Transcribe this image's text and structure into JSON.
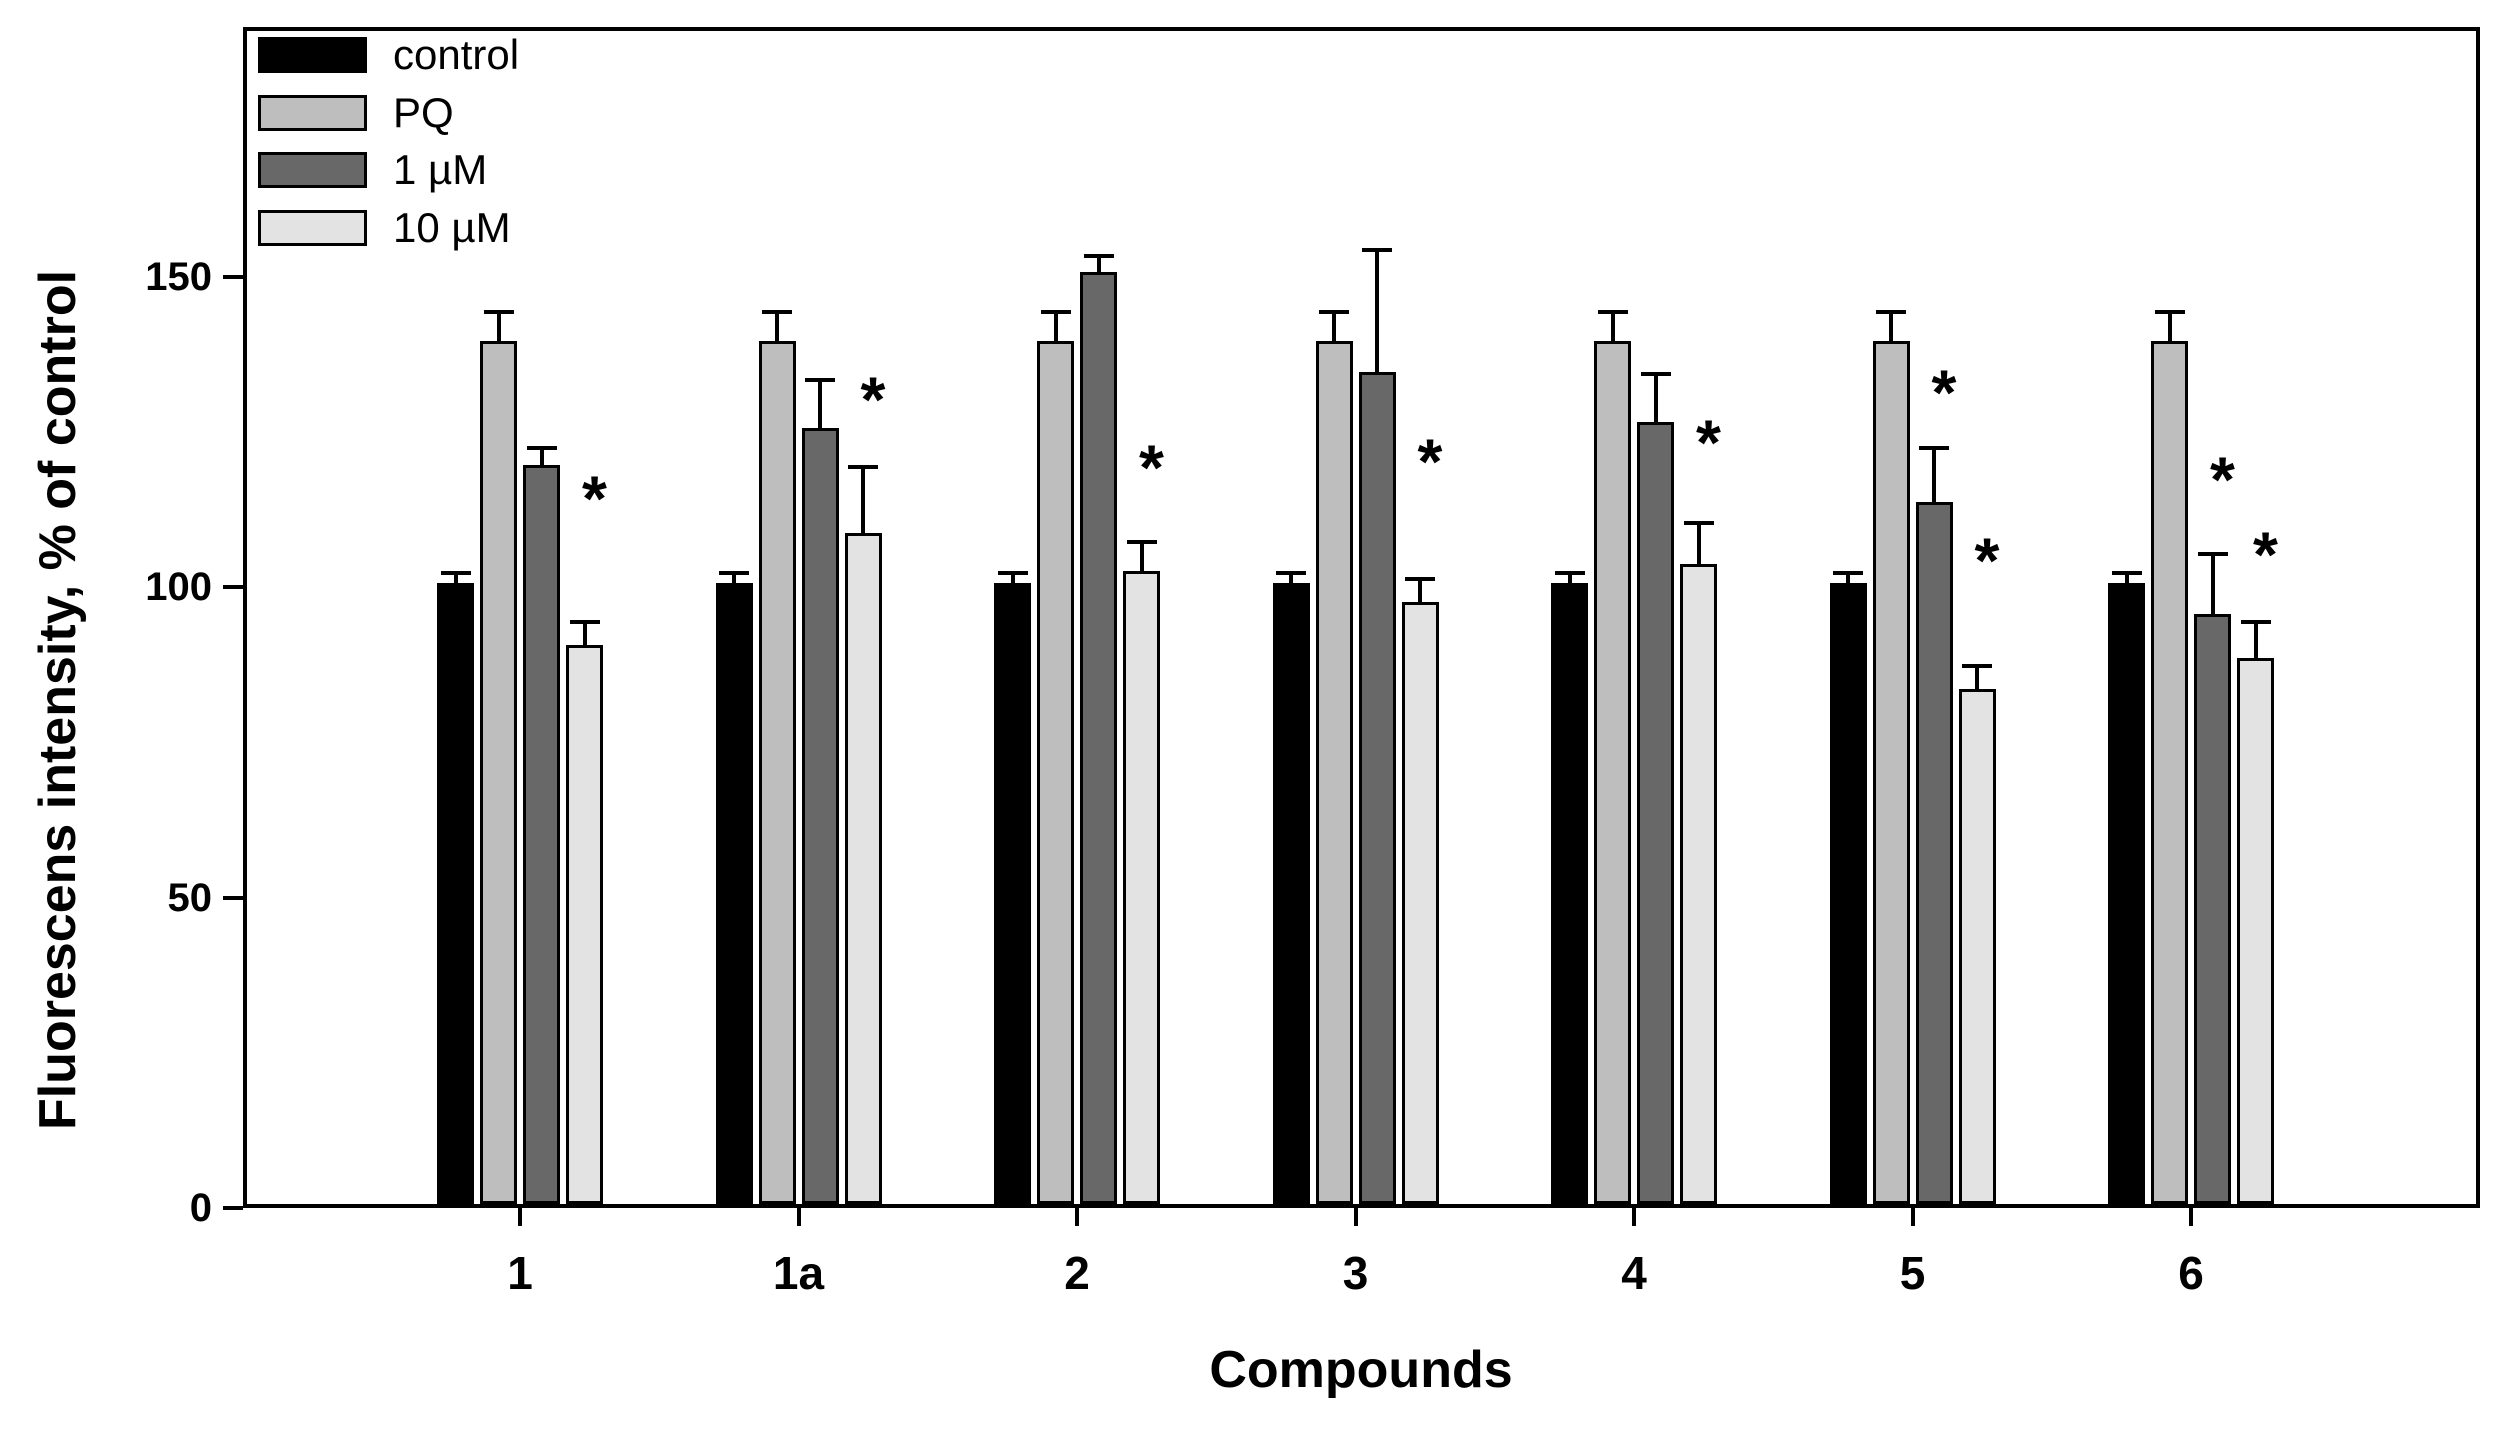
{
  "axes": {
    "y_title": "Fluorescens intensity, % of control",
    "x_title": "Compounds"
  },
  "legend": {
    "items": [
      {
        "label": "control",
        "color": "#000000"
      },
      {
        "label": "PQ",
        "color": "#bebebe"
      },
      {
        "label": "1 µM",
        "color": "#686868"
      },
      {
        "label": "10 µM",
        "color": "#e3e3e3"
      }
    ]
  },
  "chart_data": {
    "type": "bar",
    "title": "",
    "xlabel": "Compounds",
    "ylabel": "Fluorescens intensity, % of control",
    "categories": [
      "1",
      "1a",
      "2",
      "3",
      "4",
      "5",
      "6"
    ],
    "series": [
      {
        "name": "control",
        "color": "#000000",
        "values": [
          100,
          100,
          100,
          100,
          100,
          100,
          100
        ],
        "errors": [
          2,
          2,
          2,
          2,
          2,
          2,
          2
        ]
      },
      {
        "name": "PQ",
        "color": "#bebebe",
        "values": [
          139,
          139,
          139,
          139,
          139,
          139,
          139
        ],
        "errors": [
          5,
          5,
          5,
          5,
          5,
          5,
          5
        ]
      },
      {
        "name": "1 µM",
        "color": "#686868",
        "values": [
          119,
          125,
          150,
          134,
          126,
          113,
          95
        ],
        "errors": [
          3,
          8,
          3,
          20,
          8,
          9,
          10
        ]
      },
      {
        "name": "10 µM",
        "color": "#e3e3e3",
        "values": [
          90,
          108,
          102,
          97,
          103,
          83,
          88
        ],
        "errors": [
          4,
          11,
          5,
          4,
          7,
          4,
          6
        ]
      }
    ],
    "error_bars": "+SD, capped",
    "significance_marker": "*",
    "significance": [
      {
        "category": "1",
        "series": "10 µM",
        "y": 114
      },
      {
        "category": "1a",
        "series": "10 µM",
        "y": 130
      },
      {
        "category": "2",
        "series": "10 µM",
        "y": 119
      },
      {
        "category": "3",
        "series": "10 µM",
        "y": 120
      },
      {
        "category": "4",
        "series": "10 µM",
        "y": 123
      },
      {
        "category": "5",
        "series": "1 µM",
        "y": 131
      },
      {
        "category": "5",
        "series": "10 µM",
        "y": 104
      },
      {
        "category": "6",
        "series": "1 µM",
        "y": 117
      },
      {
        "category": "6",
        "series": "10 µM",
        "y": 105
      }
    ],
    "ylim": [
      0,
      190
    ],
    "yticks": [
      0,
      50,
      100,
      150
    ],
    "grid": false,
    "legend_position": "inside top-left",
    "bar_outline_color": "#000000"
  }
}
